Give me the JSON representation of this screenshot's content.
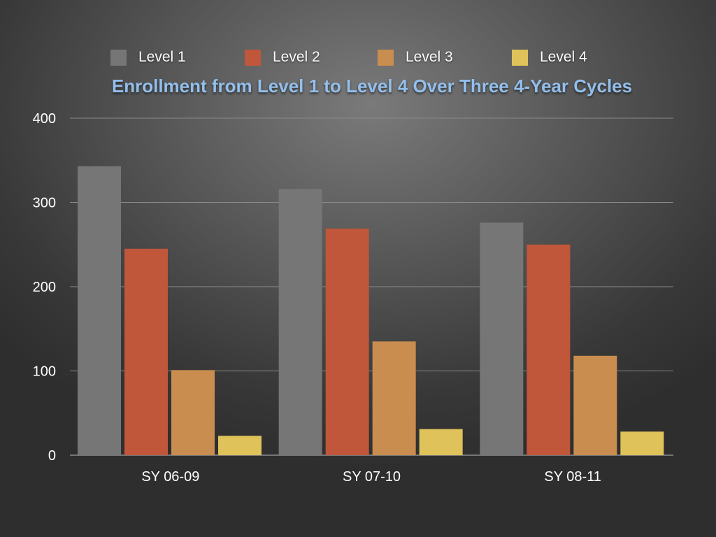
{
  "chart_data": {
    "type": "bar",
    "title": "Enrollment from Level 1 to Level 4 Over Three 4-Year Cycles",
    "xlabel": "",
    "ylabel": "",
    "ylim": [
      0,
      400
    ],
    "yticks": [
      0,
      100,
      200,
      300,
      400
    ],
    "grid": true,
    "legend_position": "top",
    "categories": [
      "SY 06-09",
      "SY 07-10",
      "SY 08-11"
    ],
    "series": [
      {
        "name": "Level 1",
        "color": "#767676",
        "values": [
          343,
          316,
          276
        ]
      },
      {
        "name": "Level 2",
        "color": "#c0563a",
        "values": [
          245,
          269,
          250
        ]
      },
      {
        "name": "Level 3",
        "color": "#c98d4f",
        "values": [
          101,
          135,
          118
        ]
      },
      {
        "name": "Level 4",
        "color": "#dfc25a",
        "values": [
          23,
          31,
          28
        ]
      }
    ]
  }
}
